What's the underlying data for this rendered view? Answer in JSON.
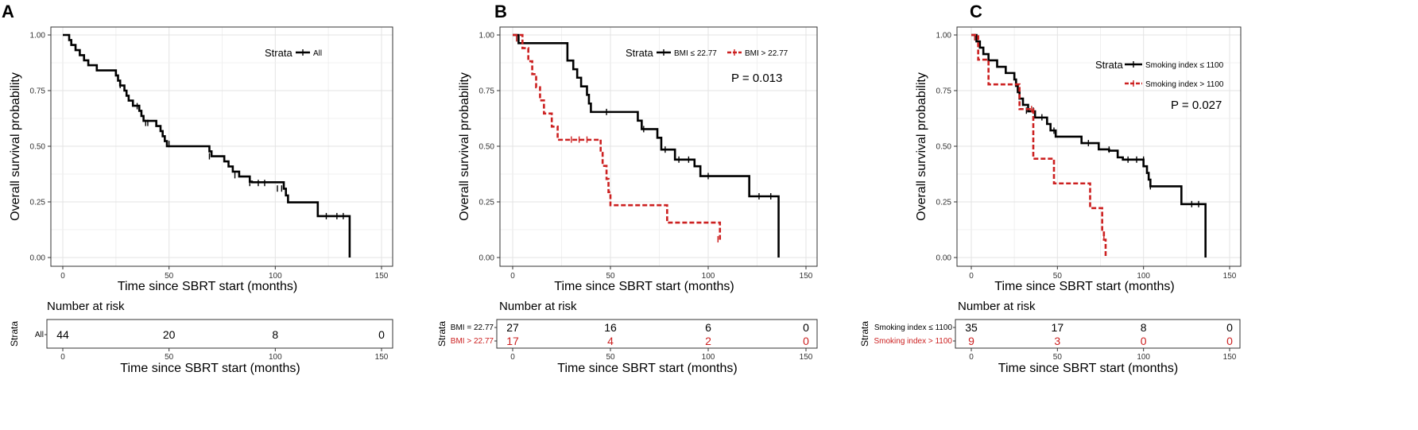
{
  "chart_data": [
    {
      "panel": "A",
      "type": "line",
      "subtype": "kaplan-meier step",
      "ylabel": "Overall survival probability",
      "xlabel": "Time since SBRT start (months)",
      "xlim": [
        0,
        150
      ],
      "ylim": [
        0,
        1
      ],
      "xticks": [
        "0",
        "50",
        "100",
        "150"
      ],
      "yticks": [
        "0.00",
        "0.25",
        "0.50",
        "0.75",
        "1.00"
      ],
      "grid": true,
      "legend_title": "Strata",
      "legend_position": "top-right",
      "p_value": "",
      "series": [
        {
          "name": "All",
          "color": "#000000",
          "dash": "solid",
          "steps": [
            [
              0,
              1.0
            ],
            [
              3,
              0.977
            ],
            [
              4,
              0.955
            ],
            [
              6,
              0.932
            ],
            [
              8,
              0.909
            ],
            [
              10,
              0.886
            ],
            [
              12,
              0.864
            ],
            [
              16,
              0.841
            ],
            [
              25,
              0.818
            ],
            [
              26,
              0.795
            ],
            [
              27,
              0.773
            ],
            [
              29,
              0.75
            ],
            [
              30,
              0.727
            ],
            [
              31,
              0.705
            ],
            [
              33,
              0.682
            ],
            [
              36,
              0.659
            ],
            [
              37,
              0.636
            ],
            [
              38,
              0.614
            ],
            [
              44,
              0.591
            ],
            [
              46,
              0.568
            ],
            [
              47,
              0.545
            ],
            [
              48,
              0.523
            ],
            [
              49,
              0.5
            ],
            [
              69,
              0.477
            ],
            [
              70,
              0.455
            ],
            [
              76,
              0.432
            ],
            [
              78,
              0.409
            ],
            [
              80,
              0.386
            ],
            [
              83,
              0.364
            ],
            [
              88,
              0.341
            ],
            [
              89,
              0.338
            ],
            [
              104,
              0.309
            ],
            [
              105,
              0.279
            ],
            [
              106,
              0.248
            ],
            [
              120,
              0.186
            ],
            [
              134,
              0.186
            ],
            [
              135,
              0.0
            ]
          ],
          "end": 135,
          "censored": [
            [
              27,
              0.775
            ],
            [
              35,
              0.68
            ],
            [
              39,
              0.605
            ],
            [
              40,
              0.605
            ],
            [
              48,
              0.535
            ],
            [
              50,
              0.51
            ],
            [
              69,
              0.455
            ],
            [
              81,
              0.37
            ],
            [
              88,
              0.335
            ],
            [
              92,
              0.335
            ],
            [
              95,
              0.335
            ],
            [
              101,
              0.31
            ],
            [
              103,
              0.31
            ],
            [
              124,
              0.186
            ],
            [
              129,
              0.186
            ],
            [
              132,
              0.186
            ]
          ]
        }
      ],
      "risk_table": {
        "title": "Number at risk",
        "strata_label": "Strata",
        "times": [
          "0",
          "50",
          "100",
          "150"
        ],
        "rows": [
          {
            "label": "All",
            "color": "#000000",
            "counts": [
              "44",
              "20",
              "8",
              "0"
            ]
          }
        ]
      }
    },
    {
      "panel": "B",
      "type": "line",
      "subtype": "kaplan-meier step",
      "ylabel": "Overall survival probability",
      "xlabel": "Time since SBRT start (months)",
      "xlim": [
        0,
        150
      ],
      "ylim": [
        0,
        1
      ],
      "xticks": [
        "0",
        "50",
        "100",
        "150"
      ],
      "yticks": [
        "0.00",
        "0.25",
        "0.50",
        "0.75",
        "1.00"
      ],
      "grid": true,
      "legend_title": "Strata",
      "legend_position": "top-right",
      "p_value": "P = 0.013",
      "series": [
        {
          "name": "BMI ≤ 22.77",
          "color": "#000000",
          "dash": "solid",
          "steps": [
            [
              0,
              1.0
            ],
            [
              3,
              0.963
            ],
            [
              28,
              0.885
            ],
            [
              31,
              0.846
            ],
            [
              33,
              0.808
            ],
            [
              35,
              0.769
            ],
            [
              38,
              0.731
            ],
            [
              39,
              0.692
            ],
            [
              40,
              0.654
            ],
            [
              64,
              0.615
            ],
            [
              66,
              0.577
            ],
            [
              74,
              0.538
            ],
            [
              76,
              0.485
            ],
            [
              80,
              0.485
            ],
            [
              83,
              0.44
            ],
            [
              87,
              0.44
            ],
            [
              93,
              0.41
            ],
            [
              96,
              0.366
            ],
            [
              108,
              0.366
            ],
            [
              121,
              0.275
            ],
            [
              135,
              0.275
            ],
            [
              136,
              0.0
            ]
          ],
          "end": 136,
          "censored": [
            [
              2,
              0.985
            ],
            [
              48,
              0.654
            ],
            [
              67,
              0.577
            ],
            [
              78,
              0.485
            ],
            [
              85,
              0.44
            ],
            [
              90,
              0.44
            ],
            [
              100,
              0.366
            ],
            [
              126,
              0.275
            ],
            [
              132,
              0.275
            ]
          ]
        },
        {
          "name": "BMI > 22.77",
          "color": "#cc2020",
          "dash": "dashed",
          "steps": [
            [
              0,
              1.0
            ],
            [
              5,
              0.941
            ],
            [
              8,
              0.882
            ],
            [
              10,
              0.824
            ],
            [
              12,
              0.765
            ],
            [
              14,
              0.706
            ],
            [
              16,
              0.647
            ],
            [
              20,
              0.588
            ],
            [
              23,
              0.529
            ],
            [
              44,
              0.53
            ],
            [
              45,
              0.47
            ],
            [
              46,
              0.412
            ],
            [
              48,
              0.353
            ],
            [
              49,
              0.294
            ],
            [
              50,
              0.235
            ],
            [
              78,
              0.235
            ],
            [
              79,
              0.157
            ],
            [
              105,
              0.157
            ],
            [
              106,
              0.08
            ]
          ],
          "end": 106,
          "censored": [
            [
              2,
              0.985
            ],
            [
              30,
              0.53
            ],
            [
              34,
              0.53
            ],
            [
              38,
              0.53
            ],
            [
              105,
              0.082
            ]
          ]
        }
      ],
      "risk_table": {
        "title": "Number at risk",
        "strata_label": "Strata",
        "times": [
          "0",
          "50",
          "100",
          "150"
        ],
        "rows": [
          {
            "label": "BMI = 22.77",
            "color": "#000000",
            "counts": [
              "27",
              "16",
              "6",
              "0"
            ]
          },
          {
            "label": "BMI > 22.77",
            "color": "#cc2020",
            "counts": [
              "17",
              "4",
              "2",
              "0"
            ]
          }
        ]
      }
    },
    {
      "panel": "C",
      "type": "line",
      "subtype": "kaplan-meier step",
      "ylabel": "Overall survival probability",
      "xlabel": "Time since SBRT start (months)",
      "xlim": [
        0,
        150
      ],
      "ylim": [
        0,
        1
      ],
      "xticks": [
        "0",
        "50",
        "100",
        "150"
      ],
      "yticks": [
        "0.00",
        "0.25",
        "0.50",
        "0.75",
        "1.00"
      ],
      "grid": true,
      "legend_title": "Strata",
      "legend_position": "top-right",
      "p_value": "P = 0.027",
      "series": [
        {
          "name": "Smoking index ≤ 1100",
          "color": "#000000",
          "dash": "solid",
          "steps": [
            [
              0,
              1.0
            ],
            [
              3,
              0.971
            ],
            [
              5,
              0.943
            ],
            [
              7,
              0.914
            ],
            [
              10,
              0.886
            ],
            [
              15,
              0.857
            ],
            [
              20,
              0.829
            ],
            [
              25,
              0.8
            ],
            [
              26,
              0.771
            ],
            [
              27,
              0.743
            ],
            [
              28,
              0.714
            ],
            [
              30,
              0.686
            ],
            [
              33,
              0.657
            ],
            [
              37,
              0.629
            ],
            [
              44,
              0.6
            ],
            [
              46,
              0.571
            ],
            [
              49,
              0.543
            ],
            [
              64,
              0.514
            ],
            [
              74,
              0.486
            ],
            [
              80,
              0.48
            ],
            [
              85,
              0.45
            ],
            [
              88,
              0.44
            ],
            [
              95,
              0.44
            ],
            [
              100,
              0.41
            ],
            [
              102,
              0.38
            ],
            [
              103,
              0.35
            ],
            [
              104,
              0.32
            ],
            [
              121,
              0.32
            ],
            [
              122,
              0.24
            ],
            [
              135,
              0.24
            ],
            [
              136,
              0.0
            ]
          ],
          "end": 136,
          "censored": [
            [
              2,
              0.99
            ],
            [
              32,
              0.66
            ],
            [
              36,
              0.66
            ],
            [
              41,
              0.63
            ],
            [
              48,
              0.57
            ],
            [
              68,
              0.514
            ],
            [
              80,
              0.485
            ],
            [
              91,
              0.44
            ],
            [
              96,
              0.44
            ],
            [
              100,
              0.44
            ],
            [
              104,
              0.32
            ],
            [
              128,
              0.24
            ],
            [
              132,
              0.24
            ]
          ]
        },
        {
          "name": "Smoking index > 1100",
          "color": "#cc2020",
          "dash": "dashed",
          "steps": [
            [
              0,
              1.0
            ],
            [
              4,
              0.889
            ],
            [
              10,
              0.778
            ],
            [
              26,
              0.778
            ],
            [
              28,
              0.667
            ],
            [
              32,
              0.667
            ],
            [
              36,
              0.444
            ],
            [
              48,
              0.333
            ],
            [
              57,
              0.333
            ],
            [
              61,
              0.333
            ],
            [
              66,
              0.333
            ],
            [
              69,
              0.222
            ],
            [
              75,
              0.222
            ],
            [
              76,
              0.12
            ],
            [
              77,
              0.08
            ],
            [
              78,
              0.0
            ]
          ],
          "end": 78,
          "censored": [
            [
              2,
              0.99
            ],
            [
              35,
              0.667
            ],
            [
              77,
              0.1
            ]
          ]
        }
      ],
      "risk_table": {
        "title": "Number at risk",
        "strata_label": "Strata",
        "times": [
          "0",
          "50",
          "100",
          "150"
        ],
        "rows": [
          {
            "label": "Smoking index ≤ 1100",
            "color": "#000000",
            "counts": [
              "35",
              "17",
              "8",
              "0"
            ]
          },
          {
            "label": "Smoking index > 1100",
            "color": "#cc2020",
            "counts": [
              "9",
              "3",
              "0",
              "0"
            ]
          }
        ]
      }
    }
  ]
}
